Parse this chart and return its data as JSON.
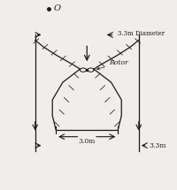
{
  "background_color": "#f0eeea",
  "line_color": "#1a1a1a",
  "label_top": "3.3m Diameter",
  "label_bottom_inner": "3.0m",
  "label_bottom_outer": "3.3m",
  "label_rotor": "Rotor",
  "label_point": "O",
  "figsize": [
    2.0,
    2.15
  ],
  "dpi": 100
}
